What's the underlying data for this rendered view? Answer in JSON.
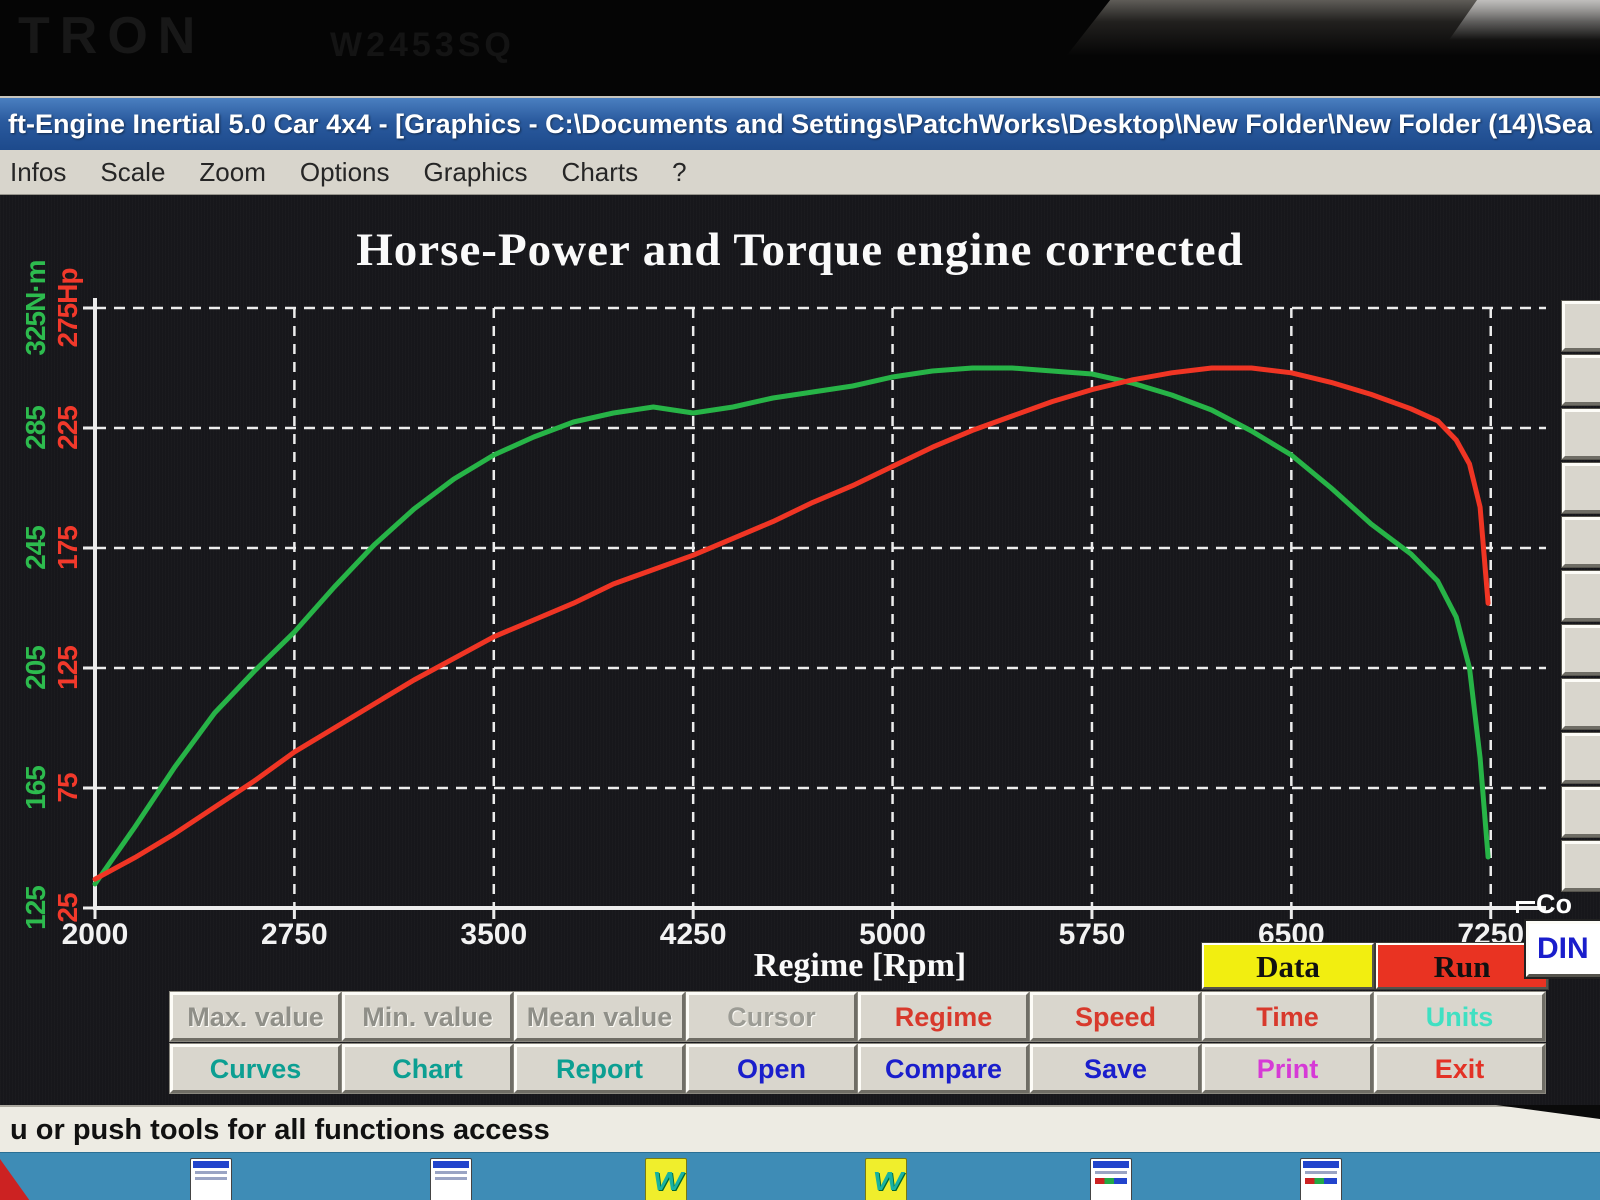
{
  "monitor": {
    "brand_text": "TRON",
    "model_text": "W2453SQ"
  },
  "window": {
    "title": "ft-Engine Inertial 5.0 Car 4x4 - [Graphics - C:\\Documents and Settings\\PatchWorks\\Desktop\\New Folder\\New Folder (14)\\Sea",
    "menu_items": [
      "Infos",
      "Scale",
      "Zoom",
      "Options",
      "Graphics",
      "Charts",
      "?"
    ]
  },
  "chart_data": {
    "type": "line",
    "title": "Horse-Power and Torque engine corrected",
    "xlabel": "Regime [Rpm]",
    "x_ticks": [
      2000,
      2750,
      3500,
      4250,
      5000,
      5750,
      6500,
      7250
    ],
    "xlim": [
      2000,
      7330
    ],
    "grid": "dashed white on black",
    "torque_axis": {
      "unit": "N·m",
      "color": "#2dbb4e",
      "tick_labels": [
        "325N·m",
        "285",
        "245",
        "205",
        "165",
        "125"
      ],
      "tick_values": [
        325,
        285,
        245,
        205,
        165,
        125
      ],
      "lim": [
        125,
        325
      ]
    },
    "power_axis": {
      "unit": "Hp",
      "color": "#f2392b",
      "tick_labels": [
        "275Hp",
        "225",
        "175",
        "125",
        "75",
        "25"
      ],
      "tick_values": [
        275,
        225,
        175,
        125,
        75,
        25
      ],
      "lim": [
        25,
        275
      ]
    },
    "series": [
      {
        "name": "Torque",
        "axis": "torque",
        "unit": "N·m",
        "color": "#27b447",
        "rpm": [
          2000,
          2150,
          2300,
          2450,
          2600,
          2750,
          2900,
          3050,
          3200,
          3350,
          3500,
          3650,
          3800,
          3950,
          4100,
          4250,
          4400,
          4550,
          4700,
          4850,
          5000,
          5150,
          5300,
          5450,
          5600,
          5750,
          5900,
          6050,
          6200,
          6350,
          6500,
          6650,
          6800,
          6950,
          7050,
          7120,
          7170,
          7210,
          7240
        ],
        "values": [
          133,
          152,
          172,
          190,
          204,
          217,
          232,
          246,
          258,
          268,
          276,
          282,
          287,
          290,
          292,
          290,
          292,
          295,
          297,
          299,
          302,
          304,
          305,
          305,
          304,
          303,
          300,
          296,
          291,
          284,
          276,
          265,
          253,
          243,
          234,
          222,
          205,
          175,
          142
        ]
      },
      {
        "name": "Horse-Power",
        "axis": "power",
        "unit": "Hp",
        "color": "#f03524",
        "rpm": [
          2000,
          2150,
          2300,
          2450,
          2600,
          2750,
          2900,
          3050,
          3200,
          3350,
          3500,
          3650,
          3800,
          3950,
          4100,
          4250,
          4400,
          4550,
          4700,
          4850,
          5000,
          5150,
          5300,
          5450,
          5600,
          5750,
          5900,
          6050,
          6200,
          6350,
          6500,
          6650,
          6800,
          6950,
          7050,
          7120,
          7170,
          7210,
          7240
        ],
        "values": [
          37,
          46,
          56,
          67,
          78,
          90,
          100,
          110,
          120,
          129,
          138,
          145,
          152,
          160,
          166,
          172,
          179,
          186,
          194,
          201,
          209,
          217,
          224,
          230,
          236,
          241,
          245,
          248,
          250,
          250,
          248,
          244,
          239,
          233,
          228,
          220,
          210,
          192,
          152
        ]
      }
    ]
  },
  "controls": {
    "data_button": {
      "label": "Data",
      "bg": "#f2ee10"
    },
    "run_button": {
      "label": "Run",
      "bg": "#e93322"
    },
    "button_rows": [
      [
        {
          "label": "Max. value",
          "color": "#8f8f88",
          "enabled": false
        },
        {
          "label": "Min. value",
          "color": "#8f8f88",
          "enabled": false
        },
        {
          "label": "Mean value",
          "color": "#8f8f88",
          "enabled": false
        },
        {
          "label": "Cursor",
          "color": "#9c9c95",
          "enabled": false
        },
        {
          "label": "Regime",
          "color": "#d8392c",
          "enabled": true
        },
        {
          "label": "Speed",
          "color": "#d8392c",
          "enabled": true
        },
        {
          "label": "Time",
          "color": "#d8392c",
          "enabled": true
        },
        {
          "label": "Units",
          "color": "#3fe0c2",
          "enabled": true
        }
      ],
      [
        {
          "label": "Curves",
          "color": "#0c9f92",
          "enabled": true
        },
        {
          "label": "Chart",
          "color": "#0c9f92",
          "enabled": true
        },
        {
          "label": "Report",
          "color": "#0c9f92",
          "enabled": true
        },
        {
          "label": "Open",
          "color": "#1a1ecc",
          "enabled": true
        },
        {
          "label": "Compare",
          "color": "#1a1ecc",
          "enabled": true
        },
        {
          "label": "Save",
          "color": "#1a1ecc",
          "enabled": true
        },
        {
          "label": "Print",
          "color": "#d63ad6",
          "enabled": true
        },
        {
          "label": "Exit",
          "color": "#e33226",
          "enabled": true
        }
      ]
    ],
    "correction": {
      "label": "Co",
      "value": "DIN"
    },
    "right_toolbar_button_count": 11
  },
  "status_bar": {
    "text": "u or push tools for all functions access"
  },
  "taskbar": {
    "icons": [
      "window",
      "window",
      "dyno",
      "dyno",
      "window-run",
      "window-run"
    ]
  }
}
